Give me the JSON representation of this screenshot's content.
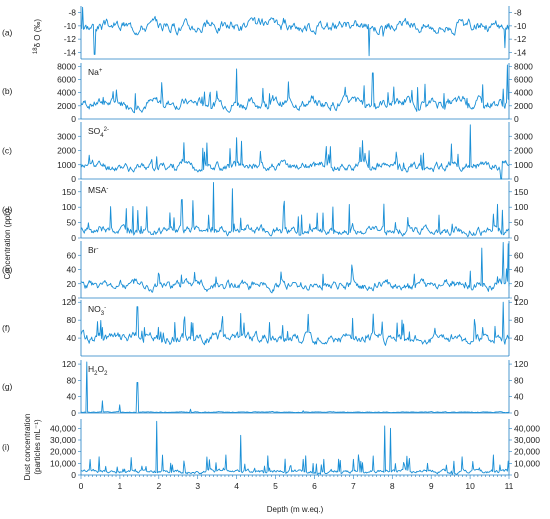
{
  "chart_data": {
    "type": "line",
    "xlabel": "Depth (m w.eq.)",
    "x_ticks": [
      "0",
      "1",
      "2",
      "3",
      "4",
      "5",
      "6",
      "7",
      "8",
      "9",
      "10",
      "11"
    ],
    "xlim": [
      0,
      11
    ],
    "ylabel_shared": "Concentration (ppb)",
    "colors": {
      "line": "#1a8fd6",
      "axis": "#1f7fc4"
    },
    "panels": [
      {
        "id": "a",
        "letter": "(a)",
        "label_parts": [
          {
            "t": "18",
            "sup": true
          },
          {
            "t": "δ  O (‰)"
          }
        ],
        "ylim": [
          -15,
          -7
        ],
        "ticks": [
          -8,
          -10,
          -12,
          -14
        ],
        "tick_labels": [
          "-8",
          "-10",
          "-12",
          "-14"
        ],
        "series_label": [],
        "baseline": -10,
        "amplitude": 1.3,
        "seed": 3,
        "peak_rate": 0.01,
        "peak_size": 1.5,
        "notable": [
          {
            "x": 0.35,
            "y": -14.3
          },
          {
            "x": 7.4,
            "y": -14.5
          },
          {
            "x": 0.05,
            "y": -7.2
          },
          {
            "x": 10.9,
            "y": -13.3
          }
        ]
      },
      {
        "id": "b",
        "letter": "(b)",
        "label_parts": [],
        "ylim": [
          0,
          8500
        ],
        "ticks": [
          0,
          2000,
          4000,
          6000,
          8000
        ],
        "tick_labels": [
          "0",
          "2000",
          "4000",
          "6000",
          "8000"
        ],
        "series_label": [
          {
            "t": "Na"
          },
          {
            "t": "+",
            "sup": true
          }
        ],
        "baseline": 2400,
        "amplitude": 1200,
        "seed": 7,
        "peak_rate": 0.06,
        "peak_size": 3500,
        "notable": [
          {
            "x": 4.0,
            "y": 7600
          },
          {
            "x": 10.95,
            "y": 8200
          },
          {
            "x": 7.5,
            "y": 7000
          }
        ]
      },
      {
        "id": "c",
        "letter": "(c)",
        "label_parts": [],
        "ylim": [
          0,
          4000
        ],
        "ticks": [
          0,
          1000,
          2000,
          3000
        ],
        "tick_labels": [
          "0",
          "1000",
          "2000",
          "3000"
        ],
        "series_label": [
          {
            "t": "SO"
          },
          {
            "t": "4",
            "sub": true
          },
          {
            "t": "2-",
            "sup": true
          }
        ],
        "baseline": 900,
        "amplitude": 500,
        "seed": 11,
        "peak_rate": 0.07,
        "peak_size": 1600,
        "notable": [
          {
            "x": 10.0,
            "y": 3800
          },
          {
            "x": 4.0,
            "y": 2900
          },
          {
            "x": 10.8,
            "y": 0
          }
        ]
      },
      {
        "id": "d",
        "letter": "(d)",
        "label_parts": [],
        "ylim": [
          0,
          185
        ],
        "ticks": [
          0,
          50,
          100,
          150
        ],
        "tick_labels": [
          "0",
          "50",
          "100",
          "150"
        ],
        "series_label": [
          {
            "t": "MSA"
          },
          {
            "t": "-",
            "sup": true
          }
        ],
        "baseline": 25,
        "amplitude": 22,
        "seed": 19,
        "peak_rate": 0.07,
        "peak_size": 90,
        "notable": [
          {
            "x": 3.4,
            "y": 180
          },
          {
            "x": 3.9,
            "y": 160
          },
          {
            "x": 2.6,
            "y": 125
          }
        ]
      },
      {
        "id": "e",
        "letter": "(e)",
        "label_parts": [],
        "ylim": [
          0,
          80
        ],
        "ticks": [
          0,
          20,
          40,
          60
        ],
        "tick_labels": [
          "0",
          "20",
          "40",
          "60"
        ],
        "series_label": [
          {
            "t": "Br"
          },
          {
            "t": "-",
            "sup": true
          }
        ],
        "baseline": 18,
        "amplitude": 10,
        "seed": 23,
        "peak_rate": 0.05,
        "peak_size": 25,
        "notable": [
          {
            "x": 10.85,
            "y": 78
          },
          {
            "x": 10.3,
            "y": 70
          },
          {
            "x": 10.98,
            "y": 76
          }
        ]
      },
      {
        "id": "f",
        "letter": "(f)",
        "label_parts": [],
        "ylim": [
          0,
          125
        ],
        "ticks": [
          40,
          80,
          120
        ],
        "tick_labels": [
          "40",
          "80",
          "120"
        ],
        "series_label": [
          {
            "t": "NO"
          },
          {
            "t": "3",
            "sub": true
          },
          {
            "t": "-",
            "sup": true
          }
        ],
        "baseline": 40,
        "amplitude": 18,
        "seed": 29,
        "peak_rate": 0.06,
        "peak_size": 45,
        "notable": [
          {
            "x": 1.45,
            "y": 110
          },
          {
            "x": 10.85,
            "y": 120
          },
          {
            "x": 4.1,
            "y": 95
          }
        ]
      },
      {
        "id": "g",
        "letter": "(g)",
        "label_parts": [],
        "ylim": [
          0,
          130
        ],
        "ticks": [
          0,
          40,
          80,
          120
        ],
        "tick_labels": [
          "0",
          "40",
          "80",
          "120"
        ],
        "series_label": [
          {
            "t": "H"
          },
          {
            "t": "2",
            "sub": true
          },
          {
            "t": "O"
          },
          {
            "t": "2",
            "sub": true
          }
        ],
        "baseline": 2,
        "amplitude": 1.5,
        "seed": 31,
        "peak_rate": 0.005,
        "peak_size": 8,
        "notable": [
          {
            "x": 0.15,
            "y": 125
          },
          {
            "x": 0.55,
            "y": 30
          },
          {
            "x": 1.45,
            "y": 75
          },
          {
            "x": 1.0,
            "y": 20
          }
        ]
      },
      {
        "id": "i",
        "letter": "(i)",
        "label_parts": [
          {
            "t": "Dust concentration"
          },
          {
            "t": "(particles mL⁻¹)"
          }
        ],
        "ylim": [
          0,
          48000
        ],
        "ticks": [
          0,
          10000,
          20000,
          30000,
          40000
        ],
        "tick_labels": [
          "0",
          "10,000",
          "20,000",
          "30,000",
          "40,000"
        ],
        "series_label": [],
        "baseline": 3000,
        "amplitude": 2500,
        "seed": 37,
        "peak_rate": 0.12,
        "peak_size": 14000,
        "notable": [
          {
            "x": 1.95,
            "y": 46000
          },
          {
            "x": 7.8,
            "y": 42000
          },
          {
            "x": 7.95,
            "y": 40000
          },
          {
            "x": 4.1,
            "y": 34000
          }
        ]
      }
    ]
  }
}
